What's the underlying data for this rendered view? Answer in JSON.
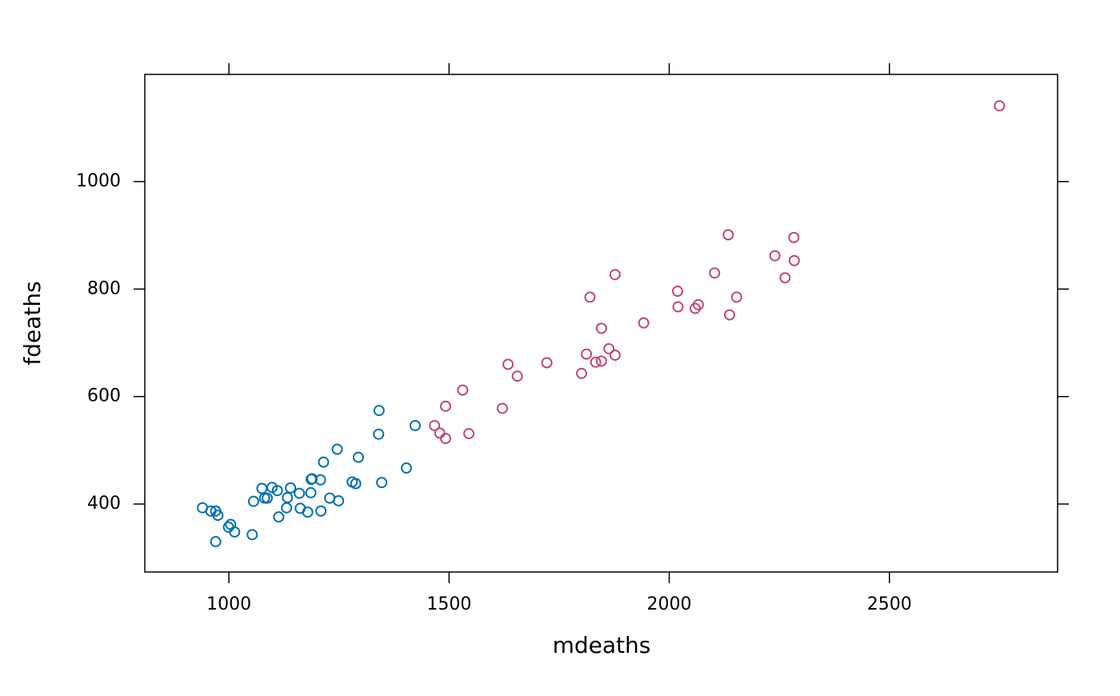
{
  "chart_data": {
    "type": "scatter",
    "xlabel": "mdeaths",
    "ylabel": "fdeaths",
    "xlim": [
      809,
      2882
    ],
    "ylim": [
      273.5,
      1199.5
    ],
    "xticks": [
      1000,
      1500,
      2000,
      2500
    ],
    "yticks": [
      400,
      600,
      800,
      1000
    ],
    "series": [
      {
        "color": "#0072b2",
        "x": [
          1249,
          1280,
          1131,
          1209,
          1403,
          1288,
          1186,
          1133,
          1053,
          1347,
          1189,
          1160,
          1113,
          970,
          999,
          1208,
          1246,
          1162,
          1087,
          1013,
          959,
          1179,
          1229,
          1423,
          1340,
          1187,
          1098,
          1004,
          970,
          1140,
          1110,
          1215,
          1075,
          1056,
          975,
          940,
          1081,
          1294,
          1341
        ],
        "values": [
          406,
          441,
          393,
          387,
          467,
          438,
          421,
          412,
          343,
          440,
          447,
          420,
          376,
          330,
          357,
          445,
          502,
          392,
          411,
          348,
          387,
          385,
          411,
          546,
          530,
          446,
          431,
          362,
          387,
          430,
          425,
          478,
          429,
          405,
          379,
          393,
          411,
          487,
          574
        ]
      },
      {
        "color": "#c04a74",
        "x": [
          2134,
          1863,
          1877,
          1877,
          1492,
          1492,
          1621,
          1846,
          2103,
          2137,
          2153,
          1833,
          1545,
          2066,
          2020,
          2750,
          2283,
          1479,
          1467,
          2059,
          2240,
          1634,
          1722,
          1801,
          1655,
          2019,
          2284,
          1942,
          1812,
          2263,
          1820,
          1846,
          1531
        ],
        "values": [
          901,
          689,
          827,
          677,
          522,
          582,
          578,
          666,
          830,
          752,
          785,
          664,
          531,
          771,
          767,
          1141,
          896,
          532,
          546,
          764,
          862,
          660,
          663,
          643,
          638,
          796,
          853,
          737,
          679,
          821,
          785,
          727,
          612
        ]
      }
    ]
  }
}
